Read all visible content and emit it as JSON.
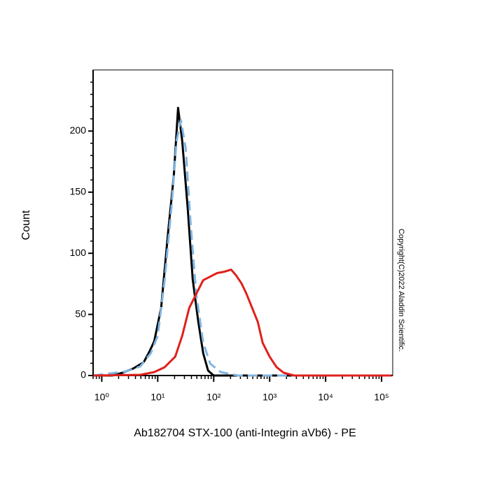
{
  "chart_data": {
    "type": "line",
    "x_label": "Ab182704 STX-100 (anti-Integrin aVb6) - PE",
    "y_label": "Count",
    "annotation": "Copyright(C)2022 Aladdin Scientific.",
    "xscale": "log",
    "xlim": [
      0.7,
      158000
    ],
    "xticks": [
      {
        "value": 1,
        "label": "10⁰"
      },
      {
        "value": 10,
        "label": "10¹"
      },
      {
        "value": 100,
        "label": "10²"
      },
      {
        "value": 1000,
        "label": "10³"
      },
      {
        "value": 10000,
        "label": "10⁴"
      },
      {
        "value": 100000,
        "label": "10⁵"
      }
    ],
    "ylim": [
      0,
      250
    ],
    "yticks": [
      0,
      50,
      100,
      150,
      200
    ],
    "series": [
      {
        "color": "#000000",
        "line_style": "solid",
        "x": [
          0.71,
          1.54,
          2.37,
          3.65,
          5.62,
          7.08,
          8.66,
          11.5,
          15.4,
          19.4,
          23.1,
          27.4,
          34.6,
          42.2,
          53.1,
          64.9,
          79.4,
          100,
          150000
        ],
        "values": [
          0,
          0,
          2.3,
          5.7,
          10.8,
          19.4,
          27.9,
          55.3,
          118,
          163.5,
          219,
          192,
          135,
          78.6,
          43.9,
          18.2,
          4,
          0,
          0
        ]
      },
      {
        "color": "#7fb4e0",
        "line_style": "dashed",
        "x": [
          0.71,
          2.74,
          4.87,
          7.5,
          10,
          13.3,
          17.8,
          21.7,
          25.9,
          31.6,
          38.8,
          48.7,
          65,
          86.6,
          133,
          274,
          150000
        ],
        "values": [
          0,
          3.4,
          7.4,
          18.2,
          32.5,
          78,
          140.7,
          192,
          209,
          186,
          123.6,
          66.7,
          26.8,
          9.7,
          2.8,
          0,
          0
        ]
      },
      {
        "color": "#e0201b",
        "line_style": "solid",
        "x": [
          0.71,
          4.87,
          8.66,
          13.3,
          20.5,
          27.4,
          36.5,
          48.7,
          65,
          86.6,
          115,
          154,
          205,
          251,
          316,
          386,
          487,
          614,
          750,
          1000,
          1334,
          1778,
          2738,
          150000
        ],
        "values": [
          0,
          0.6,
          2.8,
          6.8,
          15.4,
          32.5,
          55.3,
          66.7,
          78,
          80.9,
          83.8,
          84.9,
          86.6,
          82,
          75.2,
          66.7,
          55.3,
          43.9,
          26.8,
          15.4,
          6.8,
          2.3,
          0,
          0
        ]
      }
    ]
  }
}
